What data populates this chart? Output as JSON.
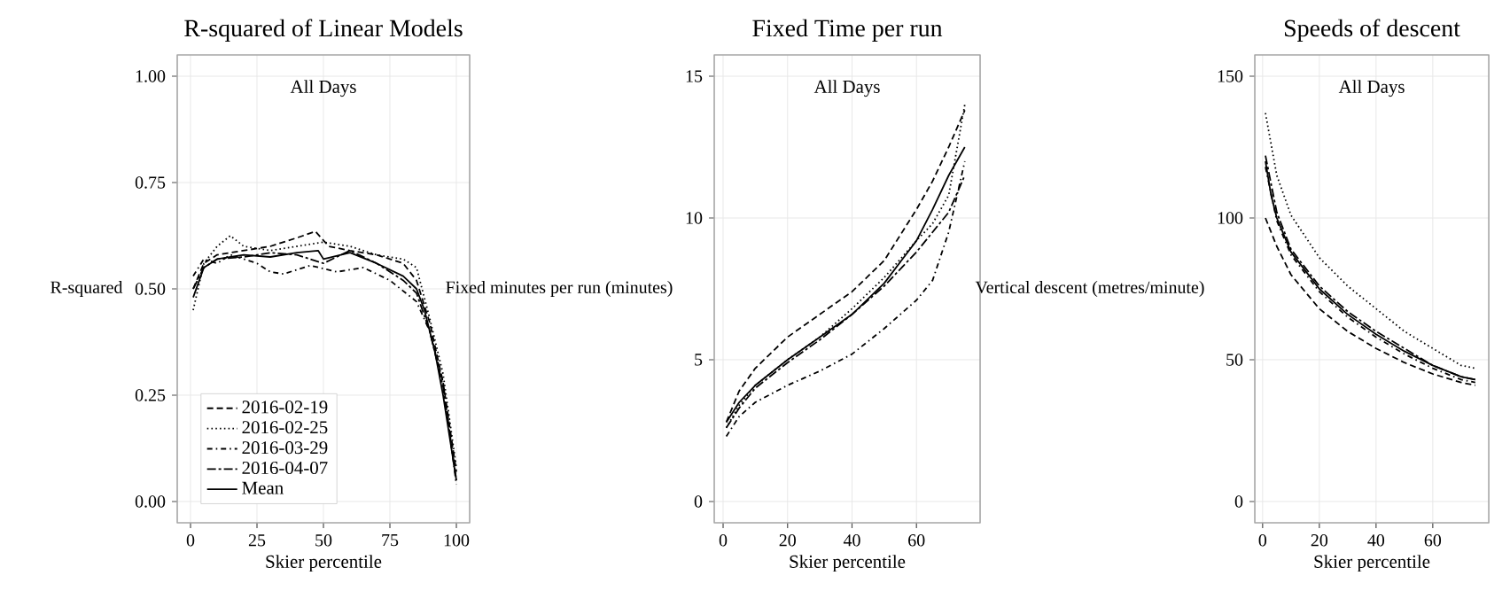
{
  "chart_data": [
    {
      "type": "line",
      "title": "R-squared of Linear Models",
      "xlabel": "Skier percentile",
      "ylabel": "R-squared",
      "annotations": [
        "All Days"
      ],
      "xlim": [
        -5,
        105
      ],
      "ylim": [
        -0.05,
        1.05
      ],
      "xticks": [
        0,
        25,
        50,
        75,
        100
      ],
      "yticks": [
        {
          "value": 0,
          "label": "0.00"
        },
        0.25,
        {
          "value": 0.5,
          "label": "0.50"
        },
        0.75,
        {
          "value": 1,
          "label": "1.00"
        }
      ],
      "grid": true,
      "legend": "bottom left",
      "series": [
        {
          "name": "2016-02-19",
          "color": "#000000",
          "line_style": "dashed",
          "x": [
            1,
            5,
            10,
            20,
            30,
            40,
            47,
            52,
            60,
            70,
            80,
            85,
            90,
            95,
            100
          ],
          "values": [
            0.5,
            0.56,
            0.58,
            0.59,
            0.6,
            0.62,
            0.635,
            0.6,
            0.59,
            0.58,
            0.56,
            0.52,
            0.42,
            0.28,
            0.07
          ]
        },
        {
          "name": "2016-02-25",
          "color": "#000000",
          "line_style": "dotted",
          "x": [
            1,
            5,
            10,
            15,
            20,
            30,
            40,
            50,
            60,
            70,
            80,
            85,
            90,
            95,
            100
          ],
          "values": [
            0.45,
            0.56,
            0.6,
            0.625,
            0.6,
            0.59,
            0.6,
            0.61,
            0.6,
            0.58,
            0.57,
            0.55,
            0.43,
            0.3,
            0.08
          ]
        },
        {
          "name": "2016-03-29",
          "color": "#000000",
          "line_style": "dashdot",
          "x": [
            1,
            5,
            10,
            15,
            20,
            25,
            30,
            35,
            45,
            55,
            65,
            75,
            85,
            90,
            95,
            100
          ],
          "values": [
            0.53,
            0.57,
            0.56,
            0.58,
            0.57,
            0.56,
            0.54,
            0.535,
            0.555,
            0.54,
            0.55,
            0.52,
            0.47,
            0.4,
            0.28,
            0.04
          ]
        },
        {
          "name": "2016-04-07",
          "color": "#000000",
          "line_style": "longdashdot",
          "x": [
            1,
            5,
            10,
            20,
            30,
            40,
            50,
            60,
            70,
            80,
            85,
            90,
            95,
            100
          ],
          "values": [
            0.5,
            0.55,
            0.57,
            0.575,
            0.585,
            0.58,
            0.56,
            0.59,
            0.56,
            0.52,
            0.49,
            0.4,
            0.27,
            0.05
          ]
        },
        {
          "name": "Mean",
          "color": "#000000",
          "line_style": "solid",
          "x": [
            1,
            5,
            10,
            20,
            30,
            40,
            48,
            50,
            60,
            70,
            80,
            85,
            88,
            92,
            95,
            98,
            100
          ],
          "values": [
            0.48,
            0.55,
            0.57,
            0.58,
            0.575,
            0.585,
            0.59,
            0.57,
            0.585,
            0.56,
            0.53,
            0.5,
            0.45,
            0.35,
            0.25,
            0.13,
            0.05
          ]
        }
      ]
    },
    {
      "type": "line",
      "title": "Fixed Time per run",
      "xlabel": "Skier percentile",
      "ylabel": "Fixed minutes per run (minutes)",
      "annotations": [
        "All Days"
      ],
      "xlim": [
        -2.75,
        79.75
      ],
      "ylim": [
        -0.75,
        15.75
      ],
      "xticks": [
        0,
        20,
        40,
        60
      ],
      "yticks": [
        0,
        5,
        10,
        15
      ],
      "grid": true,
      "series": [
        {
          "color": "#000000",
          "line_style": "dashed",
          "x": [
            1,
            5,
            10,
            20,
            30,
            40,
            50,
            60,
            65,
            70,
            75
          ],
          "values": [
            2.8,
            3.9,
            4.7,
            5.8,
            6.6,
            7.4,
            8.5,
            10.3,
            11.3,
            12.5,
            13.8
          ]
        },
        {
          "color": "#000000",
          "line_style": "dotted",
          "x": [
            1,
            5,
            10,
            20,
            30,
            40,
            50,
            60,
            65,
            70,
            75
          ],
          "values": [
            2.6,
            3.4,
            4.1,
            5.0,
            5.8,
            6.8,
            7.9,
            9.2,
            9.8,
            10.8,
            14.0
          ]
        },
        {
          "color": "#000000",
          "line_style": "dashdot",
          "x": [
            1,
            5,
            10,
            20,
            30,
            40,
            50,
            60,
            65,
            70,
            75
          ],
          "values": [
            2.3,
            3.0,
            3.5,
            4.1,
            4.6,
            5.2,
            6.1,
            7.1,
            7.8,
            9.5,
            12.0
          ]
        },
        {
          "color": "#000000",
          "line_style": "longdashdot",
          "x": [
            1,
            5,
            10,
            20,
            30,
            40,
            50,
            60,
            65,
            70,
            75
          ],
          "values": [
            2.6,
            3.3,
            4.0,
            4.9,
            5.7,
            6.6,
            7.6,
            8.8,
            9.5,
            10.2,
            11.5
          ]
        },
        {
          "color": "#000000",
          "line_style": "solid",
          "x": [
            1,
            5,
            10,
            20,
            30,
            40,
            50,
            60,
            65,
            70,
            75
          ],
          "values": [
            2.8,
            3.5,
            4.1,
            5.0,
            5.8,
            6.6,
            7.7,
            9.2,
            10.3,
            11.5,
            12.5
          ]
        }
      ]
    },
    {
      "type": "line",
      "title": "Speeds of descent",
      "xlabel": "Skier percentile",
      "ylabel": "Vertical descent (metres/minute)",
      "annotations": [
        "All Days"
      ],
      "xlim": [
        -2.75,
        79.75
      ],
      "ylim": [
        -7.5,
        157.5
      ],
      "xticks": [
        0,
        20,
        40,
        60
      ],
      "yticks": [
        0,
        50,
        100,
        150
      ],
      "grid": true,
      "series": [
        {
          "color": "#000000",
          "line_style": "dashed",
          "x": [
            1,
            5,
            10,
            20,
            30,
            40,
            50,
            60,
            70,
            75
          ],
          "values": [
            100,
            90,
            80,
            68,
            60,
            54,
            49,
            45,
            42,
            41
          ]
        },
        {
          "color": "#000000",
          "line_style": "dotted",
          "x": [
            1,
            5,
            10,
            20,
            30,
            40,
            50,
            60,
            70,
            75
          ],
          "values": [
            137,
            115,
            101,
            86,
            76,
            68,
            60,
            54,
            48,
            47
          ]
        },
        {
          "color": "#000000",
          "line_style": "dashdot",
          "x": [
            1,
            5,
            10,
            20,
            30,
            40,
            50,
            60,
            70,
            75
          ],
          "values": [
            118,
            99,
            87,
            74,
            65,
            58,
            52,
            47,
            43,
            42
          ]
        },
        {
          "color": "#000000",
          "line_style": "longdashdot",
          "x": [
            1,
            5,
            10,
            20,
            30,
            40,
            50,
            60,
            70,
            75
          ],
          "values": [
            122,
            102,
            89,
            76,
            67,
            60,
            54,
            48,
            44,
            43
          ]
        },
        {
          "color": "#000000",
          "line_style": "solid",
          "x": [
            1,
            3,
            5,
            10,
            20,
            30,
            40,
            50,
            60,
            70,
            75
          ],
          "values": [
            120,
            108,
            100,
            88,
            75,
            66,
            59,
            53,
            48,
            44,
            43
          ]
        }
      ]
    }
  ]
}
